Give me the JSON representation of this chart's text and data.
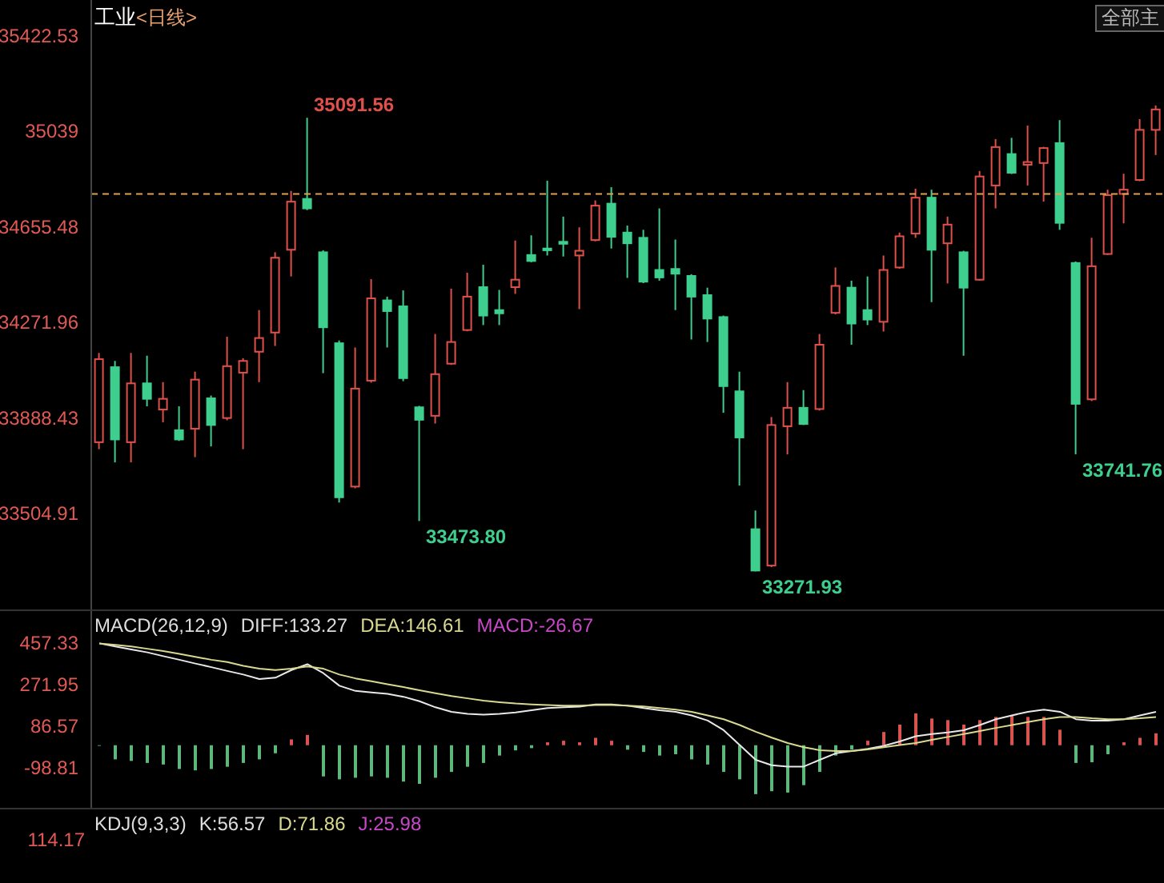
{
  "chart_data": [
    {
      "type": "candlestick",
      "title": "工业",
      "subtitle": "<日线>",
      "categories": [
        null,
        null,
        null,
        null,
        null,
        null,
        null,
        null,
        null,
        null,
        null,
        null,
        null,
        null,
        null,
        null,
        null,
        null,
        null,
        null,
        null,
        null,
        null,
        null,
        null,
        null,
        null,
        null,
        null,
        null,
        null,
        null,
        null,
        null,
        null,
        null,
        null,
        null,
        null,
        null,
        null,
        null,
        null,
        null,
        null,
        null,
        null,
        null,
        null,
        null,
        null,
        null,
        null,
        null,
        null,
        null,
        null,
        null,
        null,
        null,
        null,
        null,
        null,
        null,
        null,
        null,
        null
      ],
      "ohlc": [
        [
          33790,
          34148,
          33762,
          34123
        ],
        [
          34091,
          34116,
          33709,
          33801
        ],
        [
          33790,
          34148,
          33709,
          34026
        ],
        [
          34026,
          34137,
          33934,
          33964
        ],
        [
          33921,
          34031,
          33870,
          33964
        ],
        [
          33838,
          33934,
          33795,
          33801
        ],
        [
          33844,
          34073,
          33730,
          34041
        ],
        [
          33966,
          33977,
          33773,
          33859
        ],
        [
          33887,
          34213,
          33878,
          34095
        ],
        [
          34069,
          34127,
          33762,
          34116
        ],
        [
          34153,
          34320,
          34031,
          34208
        ],
        [
          34230,
          34552,
          34176,
          34530
        ],
        [
          34562,
          34798,
          34455,
          34755
        ],
        [
          34766,
          35091.56,
          34721,
          34728
        ],
        [
          34552,
          34560,
          34067,
          34251
        ],
        [
          34187,
          34198,
          33548,
          33569
        ],
        [
          33612,
          34170,
          33605,
          34005
        ],
        [
          34037,
          34444,
          34029,
          34367
        ],
        [
          34359,
          34374,
          34170,
          34316
        ],
        [
          34335,
          34399,
          34035,
          34047
        ],
        [
          33930,
          33936,
          33473.8,
          33880
        ],
        [
          33896,
          34224,
          33865,
          34063
        ],
        [
          34105,
          34406,
          34100,
          34192
        ],
        [
          34240,
          34470,
          34235,
          34374
        ],
        [
          34412,
          34502,
          34260,
          34298
        ],
        [
          34320,
          34401,
          34260,
          34307
        ],
        [
          34412,
          34599,
          34385,
          34442
        ],
        [
          34541,
          34620,
          34512,
          34517
        ],
        [
          34567,
          34839,
          34539,
          34560
        ],
        [
          34594,
          34695,
          34535,
          34586
        ],
        [
          34539,
          34652,
          34324,
          34558
        ],
        [
          34601,
          34760,
          34596,
          34739
        ],
        [
          34747,
          34813,
          34567,
          34614
        ],
        [
          34631,
          34659,
          34449,
          34588
        ],
        [
          34610,
          34642,
          34428,
          34434
        ],
        [
          34481,
          34728,
          34438,
          34451
        ],
        [
          34485,
          34603,
          34320,
          34466
        ],
        [
          34457,
          34464,
          34202,
          34374
        ],
        [
          34380,
          34410,
          34192,
          34286
        ],
        [
          34292,
          34298,
          33908,
          34015
        ],
        [
          33994,
          34073,
          33616,
          33809
        ],
        [
          33441,
          33516,
          33271.93,
          33275
        ],
        [
          33295,
          33891,
          33289,
          33859
        ],
        [
          33854,
          34031,
          33741,
          33928
        ],
        [
          33928,
          33999,
          33859,
          33863
        ],
        [
          33923,
          34224,
          33917,
          34181
        ],
        [
          34309,
          34491,
          34303,
          34417
        ],
        [
          34410,
          34438,
          34181,
          34266
        ],
        [
          34320,
          34455,
          34260,
          34282
        ],
        [
          34273,
          34539,
          34234,
          34481
        ],
        [
          34491,
          34631,
          34486,
          34616
        ],
        [
          34627,
          34807,
          34610,
          34771
        ],
        [
          34771,
          34803,
          34352,
          34562
        ],
        [
          34588,
          34695,
          34427,
          34663
        ],
        [
          34552,
          34558,
          34137,
          34410
        ],
        [
          34442,
          34878,
          34438,
          34856
        ],
        [
          34820,
          35006,
          34728,
          34974
        ],
        [
          34946,
          35011,
          34866,
          34871
        ],
        [
          34903,
          35060,
          34820,
          34914
        ],
        [
          34910,
          34975,
          34755,
          34970
        ],
        [
          34990,
          35082,
          34642,
          34670
        ],
        [
          34509,
          34515,
          33741.76,
          33944
        ],
        [
          33962,
          34610,
          33955,
          34496
        ],
        [
          34545,
          34803,
          34541,
          34781
        ],
        [
          34786,
          34867,
          34668,
          34803
        ],
        [
          34842,
          35086,
          34837,
          35043
        ],
        [
          35043,
          35141,
          34942,
          35125
        ]
      ],
      "colors": [
        "#e0504a",
        "#3ecf8e",
        "#e0504a",
        "#3ecf8e",
        "#e0504a",
        "#3ecf8e",
        "#e0504a",
        "#3ecf8e",
        "#e0504a",
        "#e0504a",
        "#e0504a",
        "#e0504a",
        "#e0504a",
        "#3ecf8e",
        "#3ecf8e",
        "#3ecf8e",
        "#e0504a",
        "#e0504a",
        "#3ecf8e",
        "#3ecf8e",
        "#3ecf8e",
        "#e0504a",
        "#e0504a",
        "#e0504a",
        "#3ecf8e",
        "#3ecf8e",
        "#e0504a",
        "#3ecf8e",
        "#3ecf8e",
        "#3ecf8e",
        "#e0504a",
        "#e0504a",
        "#3ecf8e",
        "#3ecf8e",
        "#3ecf8e",
        "#3ecf8e",
        "#3ecf8e",
        "#3ecf8e",
        "#3ecf8e",
        "#3ecf8e",
        "#3ecf8e",
        "#3ecf8e",
        "#e0504a",
        "#e0504a",
        "#3ecf8e",
        "#e0504a",
        "#e0504a",
        "#3ecf8e",
        "#3ecf8e",
        "#e0504a",
        "#e0504a",
        "#e0504a",
        "#3ecf8e",
        "#e0504a",
        "#3ecf8e",
        "#e0504a",
        "#e0504a",
        "#3ecf8e",
        "#e0504a",
        "#e0504a",
        "#3ecf8e",
        "#3ecf8e",
        "#e0504a",
        "#e0504a",
        "#e0504a",
        "#e0504a",
        "#e0504a"
      ],
      "ylim": [
        33119,
        35564
      ],
      "yticks": [
        33504.91,
        33888.43,
        34271.96,
        34655.48,
        35039.0,
        35422.53
      ],
      "tick_labels": "y",
      "ref_lines": [
        {
          "axis": "y",
          "value": 34786,
          "color": "#e0a050",
          "line_style": "dashed"
        }
      ],
      "annotations": [
        "35091.56",
        "33473.80",
        "33271.93",
        "33741.76",
        "全部主"
      ]
    },
    {
      "type": "bar",
      "title": "MACD(26,12,9)",
      "categories": [
        null,
        null,
        null,
        null,
        null,
        null,
        null,
        null,
        null,
        null,
        null,
        null,
        null,
        null,
        null,
        null,
        null,
        null,
        null,
        null,
        null,
        null,
        null,
        null,
        null,
        null,
        null,
        null,
        null,
        null,
        null,
        null,
        null,
        null,
        null,
        null,
        null,
        null,
        null,
        null,
        null,
        null,
        null,
        null,
        null,
        null,
        null,
        null,
        null,
        null,
        null,
        null,
        null,
        null,
        null,
        null,
        null,
        null,
        null,
        null,
        null,
        null,
        null,
        null,
        null,
        null,
        null
      ],
      "series": [
        {
          "type": "bar",
          "values": [
            -3,
            -63,
            -70,
            -79,
            -86,
            -106,
            -112,
            -106,
            -96,
            -79,
            -63,
            -36,
            26,
            46,
            -139,
            -152,
            -145,
            -139,
            -145,
            -162,
            -172,
            -145,
            -119,
            -96,
            -79,
            -46,
            -23,
            -13,
            13,
            20,
            13,
            33,
            20,
            -20,
            -30,
            -46,
            -40,
            -63,
            -86,
            -119,
            -152,
            -218,
            -205,
            -211,
            -178,
            -119,
            -46,
            -20,
            20,
            59,
            92,
            142,
            119,
            112,
            92,
            112,
            126,
            135,
            126,
            126,
            69,
            -79,
            -76,
            -40,
            13,
            33,
            53
          ],
          "colors": [
            "#5cb87a",
            "#5cb87a",
            "#5cb87a",
            "#5cb87a",
            "#5cb87a",
            "#5cb87a",
            "#5cb87a",
            "#5cb87a",
            "#5cb87a",
            "#5cb87a",
            "#5cb87a",
            "#5cb87a",
            "#d9544f",
            "#d9544f",
            "#5cb87a",
            "#5cb87a",
            "#5cb87a",
            "#5cb87a",
            "#5cb87a",
            "#5cb87a",
            "#5cb87a",
            "#5cb87a",
            "#5cb87a",
            "#5cb87a",
            "#5cb87a",
            "#5cb87a",
            "#5cb87a",
            "#5cb87a",
            "#d9544f",
            "#d9544f",
            "#d9544f",
            "#d9544f",
            "#d9544f",
            "#5cb87a",
            "#5cb87a",
            "#5cb87a",
            "#5cb87a",
            "#5cb87a",
            "#5cb87a",
            "#5cb87a",
            "#5cb87a",
            "#5cb87a",
            "#5cb87a",
            "#5cb87a",
            "#5cb87a",
            "#5cb87a",
            "#5cb87a",
            "#5cb87a",
            "#d9544f",
            "#d9544f",
            "#d9544f",
            "#d9544f",
            "#d9544f",
            "#d9544f",
            "#d9544f",
            "#d9544f",
            "#d9544f",
            "#d9544f",
            "#d9544f",
            "#d9544f",
            "#d9544f",
            "#5cb87a",
            "#5cb87a",
            "#5cb87a",
            "#d9544f",
            "#d9544f",
            "#d9544f"
          ]
        },
        {
          "type": "line",
          "color": "#e8e8e8",
          "values": [
            454,
            440,
            427,
            414,
            397,
            381,
            364,
            348,
            331,
            315,
            295,
            301,
            335,
            361,
            321,
            265,
            242,
            235,
            229,
            216,
            196,
            169,
            149,
            140,
            136,
            140,
            146,
            156,
            166,
            169,
            172,
            182,
            182,
            176,
            166,
            156,
            149,
            133,
            110,
            67,
            1,
            -65,
            -89,
            -95,
            -95,
            -65,
            -36,
            -26,
            -16,
            -3,
            17,
            40,
            50,
            57,
            67,
            90,
            116,
            133,
            149,
            159,
            149,
            116,
            110,
            110,
            116,
            133,
            149
          ]
        },
        {
          "type": "line",
          "color": "#d8d890",
          "values": [
            454,
            447,
            440,
            430,
            420,
            407,
            394,
            381,
            371,
            354,
            341,
            335,
            341,
            351,
            341,
            315,
            298,
            285,
            272,
            259,
            245,
            232,
            219,
            209,
            199,
            192,
            186,
            182,
            179,
            176,
            176,
            179,
            179,
            176,
            173,
            166,
            159,
            149,
            133,
            116,
            90,
            60,
            34,
            10,
            -9,
            -22,
            -26,
            -26,
            -19,
            -9,
            1,
            10,
            24,
            37,
            50,
            63,
            77,
            90,
            103,
            116,
            126,
            126,
            120,
            116,
            116,
            120,
            126
          ]
        }
      ],
      "ylim": [
        -279,
        598
      ],
      "yticks": [
        -98.81,
        86.57,
        271.95,
        457.33
      ],
      "tick_labels": "y",
      "annotations": [
        "DIFF:133.27",
        "DEA:146.61",
        "MACD:-26.67"
      ]
    },
    {
      "type": "other",
      "title": "KDJ(9,3,3)",
      "annotations": [
        "114.17",
        "K:56.57",
        "D:71.86",
        "J:25.98"
      ]
    }
  ]
}
